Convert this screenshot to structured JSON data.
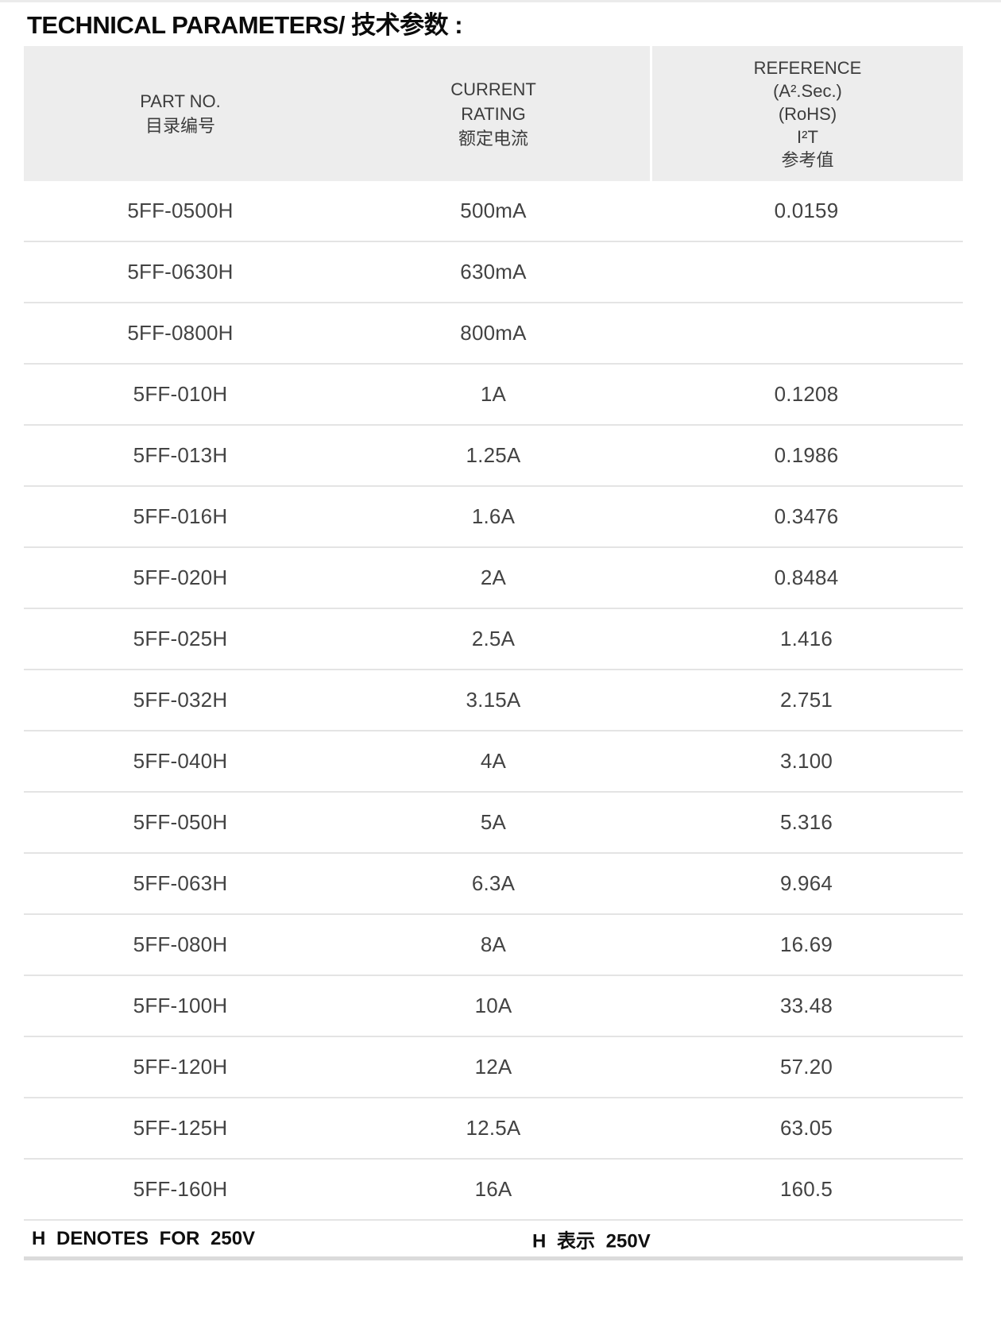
{
  "title": "TECHNICAL PARAMETERS/ 技术参数 :",
  "table": {
    "columns": [
      {
        "id": "part_no",
        "lines": [
          "PART  NO.",
          "目录编号"
        ]
      },
      {
        "id": "current_rating",
        "lines": [
          "CURRENT",
          "RATING",
          "额定电流"
        ]
      },
      {
        "id": "reference",
        "lines": [
          "REFERENCE",
          "(A².Sec.)",
          "(RoHS)",
          "I²T",
          "参考值"
        ]
      }
    ],
    "rows": [
      {
        "part_no": "5FF-0500H",
        "current_rating": "500mA",
        "reference": "0.0159"
      },
      {
        "part_no": "5FF-0630H",
        "current_rating": "630mA",
        "reference": ""
      },
      {
        "part_no": "5FF-0800H",
        "current_rating": "800mA",
        "reference": ""
      },
      {
        "part_no": "5FF-010H",
        "current_rating": "1A",
        "reference": "0.1208"
      },
      {
        "part_no": "5FF-013H",
        "current_rating": "1.25A",
        "reference": "0.1986"
      },
      {
        "part_no": "5FF-016H",
        "current_rating": "1.6A",
        "reference": "0.3476"
      },
      {
        "part_no": "5FF-020H",
        "current_rating": "2A",
        "reference": "0.8484"
      },
      {
        "part_no": "5FF-025H",
        "current_rating": "2.5A",
        "reference": "1.416"
      },
      {
        "part_no": "5FF-032H",
        "current_rating": "3.15A",
        "reference": "2.751"
      },
      {
        "part_no": "5FF-040H",
        "current_rating": "4A",
        "reference": "3.100"
      },
      {
        "part_no": "5FF-050H",
        "current_rating": "5A",
        "reference": "5.316"
      },
      {
        "part_no": "5FF-063H",
        "current_rating": "6.3A",
        "reference": "9.964"
      },
      {
        "part_no": "5FF-080H",
        "current_rating": "8A",
        "reference": "16.69"
      },
      {
        "part_no": "5FF-100H",
        "current_rating": "10A",
        "reference": "33.48"
      },
      {
        "part_no": "5FF-120H",
        "current_rating": "12A",
        "reference": "57.20"
      },
      {
        "part_no": "5FF-125H",
        "current_rating": "12.5A",
        "reference": "63.05"
      },
      {
        "part_no": "5FF-160H",
        "current_rating": "16A",
        "reference": "160.5"
      }
    ]
  },
  "footer": {
    "note_en": "H DENOTES FOR 250V",
    "note_zh": "H 表示 250V"
  },
  "colors": {
    "header_background": "#ededed",
    "row_divider": "#e4e4e4",
    "footer_divider": "#dbdbdb",
    "title_text": "#0b0b0b",
    "body_text": "#434343"
  }
}
